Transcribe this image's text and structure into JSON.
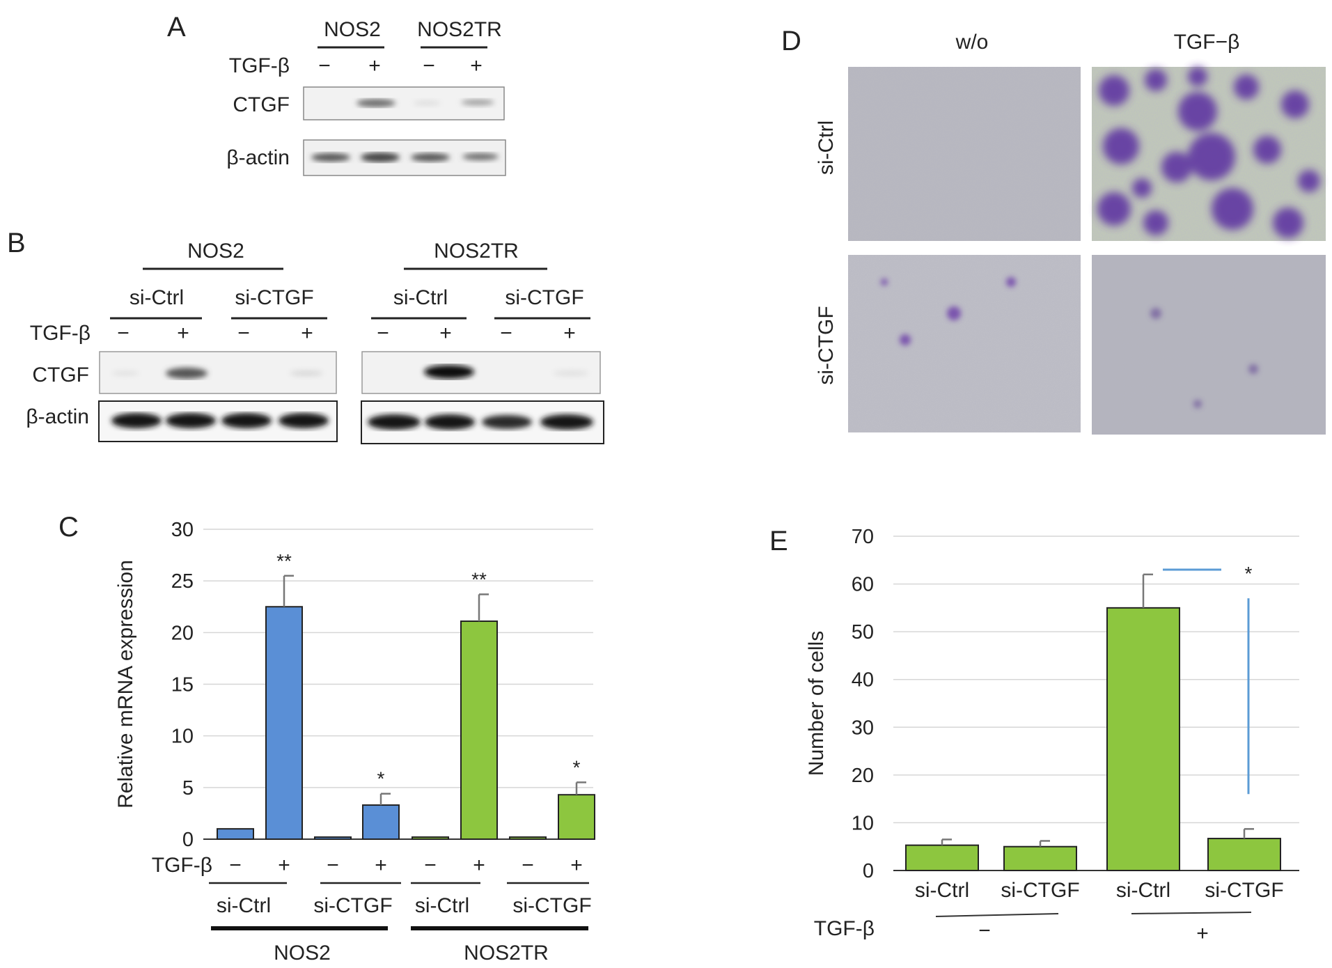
{
  "panels": {
    "A": {
      "letter": "A",
      "groups": [
        "NOS2",
        "NOS2TR"
      ],
      "tgf_label": "TGF-β",
      "signs": [
        "−",
        "+",
        "−",
        "+"
      ],
      "rows": [
        "CTGF",
        "β-actin"
      ]
    },
    "B": {
      "letter": "B",
      "groups": [
        "NOS2",
        "NOS2TR"
      ],
      "subgroups": [
        "si-Ctrl",
        "si-CTGF",
        "si-Ctrl",
        "si-CTGF"
      ],
      "tgf_label": "TGF-β",
      "signs": [
        "−",
        "+",
        "−",
        "+",
        "−",
        "+",
        "−",
        "+"
      ],
      "rows": [
        "CTGF",
        "β-actin"
      ]
    },
    "D": {
      "letter": "D",
      "columns": [
        "w/o",
        "TGF−β"
      ],
      "rows": [
        "si-Ctrl",
        "si-CTGF"
      ]
    }
  },
  "chart_data": [
    {
      "panel": "C",
      "type": "bar",
      "ylabel": "Relative mRNA expression",
      "ylim": [
        0,
        30
      ],
      "yticks": [
        0,
        5,
        10,
        15,
        20,
        25,
        30
      ],
      "grid": true,
      "tgf_label": "TGF-β",
      "signs": [
        "−",
        "+",
        "−",
        "+",
        "−",
        "+",
        "−",
        "+"
      ],
      "subgroups": [
        "si-Ctrl",
        "si-CTGF",
        "si-Ctrl",
        "si-CTGF"
      ],
      "groups": [
        "NOS2",
        "NOS2TR"
      ],
      "values": [
        1.0,
        22.5,
        0.2,
        3.3,
        0.2,
        21.1,
        0.2,
        4.3
      ],
      "errors": [
        0,
        3.0,
        0,
        1.1,
        0,
        2.6,
        0,
        1.2
      ],
      "colors": [
        "#5a8fd6",
        "#5a8fd6",
        "#5a8fd6",
        "#5a8fd6",
        "#8dc63f",
        "#8dc63f",
        "#8dc63f",
        "#8dc63f"
      ],
      "significance": [
        "",
        "**",
        "",
        "*",
        "",
        "**",
        "",
        "*"
      ]
    },
    {
      "panel": "E",
      "type": "bar",
      "ylabel": "Number of cells",
      "ylim": [
        0,
        70
      ],
      "yticks": [
        0,
        10,
        20,
        30,
        40,
        50,
        60,
        70
      ],
      "grid": true,
      "categories": [
        "si-Ctrl",
        "si-CTGF",
        "si-Ctrl",
        "si-CTGF"
      ],
      "values": [
        5.3,
        5.0,
        55.0,
        6.7
      ],
      "errors": [
        1.2,
        1.2,
        7.0,
        2.0
      ],
      "color": "#8dc63f",
      "tgf_label": "TGF-β",
      "tgf_groups": [
        "−",
        "+"
      ],
      "significance": "*"
    }
  ]
}
